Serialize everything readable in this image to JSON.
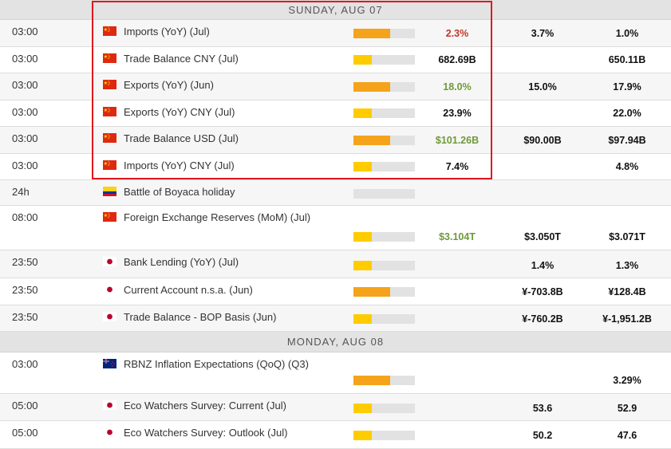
{
  "days": [
    {
      "label": "SUNDAY, AUG 07",
      "events": [
        {
          "time": "03:00",
          "flag": "china-flag",
          "name": "Imports (YoY) (Jul)",
          "impact": 0.6,
          "impact_color": "#f5a31a",
          "actual": "2.3%",
          "actual_tone": "bad",
          "consensus": "3.7%",
          "previous": "1.0%"
        },
        {
          "time": "03:00",
          "flag": "china-flag",
          "name": "Trade Balance CNY (Jul)",
          "impact": 0.3,
          "impact_color": "#ffcc00",
          "actual": "682.69B",
          "actual_tone": "neutral",
          "consensus": "",
          "previous": "650.11B"
        },
        {
          "time": "03:00",
          "flag": "china-flag",
          "name": "Exports (YoY) (Jun)",
          "impact": 0.6,
          "impact_color": "#f5a31a",
          "actual": "18.0%",
          "actual_tone": "good",
          "consensus": "15.0%",
          "previous": "17.9%"
        },
        {
          "time": "03:00",
          "flag": "china-flag",
          "name": "Exports (YoY) CNY (Jul)",
          "impact": 0.3,
          "impact_color": "#ffcc00",
          "actual": "23.9%",
          "actual_tone": "neutral",
          "consensus": "",
          "previous": "22.0%"
        },
        {
          "time": "03:00",
          "flag": "china-flag",
          "name": "Trade Balance USD (Jul)",
          "impact": 0.6,
          "impact_color": "#f5a31a",
          "actual": "$101.26B",
          "actual_tone": "good",
          "consensus": "$90.00B",
          "previous": "$97.94B"
        },
        {
          "time": "03:00",
          "flag": "china-flag",
          "name": "Imports (YoY) CNY (Jul)",
          "impact": 0.3,
          "impact_color": "#ffcc00",
          "actual": "7.4%",
          "actual_tone": "neutral",
          "consensus": "",
          "previous": "4.8%"
        },
        {
          "time": "24h",
          "flag": "colombia-flag",
          "name": "Battle of Boyaca holiday",
          "impact": 0.0,
          "impact_color": "#ffcc00",
          "actual": "",
          "actual_tone": "neutral",
          "consensus": "",
          "previous": ""
        },
        {
          "time": "08:00",
          "flag": "china-flag",
          "name": "Foreign Exchange Reserves (MoM) (Jul)",
          "impact": 0.3,
          "impact_color": "#ffcc00",
          "actual": "$3.104T",
          "actual_tone": "good",
          "consensus": "$3.050T",
          "previous": "$3.071T"
        },
        {
          "time": "23:50",
          "flag": "japan-flag",
          "name": "Bank Lending (YoY) (Jul)",
          "impact": 0.3,
          "impact_color": "#ffcc00",
          "actual": "",
          "actual_tone": "neutral",
          "consensus": "1.4%",
          "previous": "1.3%"
        },
        {
          "time": "23:50",
          "flag": "japan-flag",
          "name": "Current Account n.s.a. (Jun)",
          "impact": 0.6,
          "impact_color": "#f5a31a",
          "actual": "",
          "actual_tone": "neutral",
          "consensus": "¥-703.8B",
          "previous": "¥128.4B"
        },
        {
          "time": "23:50",
          "flag": "japan-flag",
          "name": "Trade Balance - BOP Basis (Jun)",
          "impact": 0.3,
          "impact_color": "#ffcc00",
          "actual": "",
          "actual_tone": "neutral",
          "consensus": "¥-760.2B",
          "previous": "¥-1,951.2B"
        }
      ]
    },
    {
      "label": "MONDAY, AUG 08",
      "events": [
        {
          "time": "03:00",
          "flag": "new-zealand-flag",
          "name": "RBNZ Inflation Expectations (QoQ) (Q3)",
          "impact": 0.6,
          "impact_color": "#f5a31a",
          "actual": "",
          "actual_tone": "neutral",
          "consensus": "",
          "previous": "3.29%"
        },
        {
          "time": "05:00",
          "flag": "japan-flag",
          "name": "Eco Watchers Survey: Current (Jul)",
          "impact": 0.3,
          "impact_color": "#ffcc00",
          "actual": "",
          "actual_tone": "neutral",
          "consensus": "53.6",
          "previous": "52.9"
        },
        {
          "time": "05:00",
          "flag": "japan-flag",
          "name": "Eco Watchers Survey: Outlook (Jul)",
          "impact": 0.3,
          "impact_color": "#ffcc00",
          "actual": "",
          "actual_tone": "neutral",
          "consensus": "50.2",
          "previous": "47.6"
        }
      ]
    }
  ]
}
